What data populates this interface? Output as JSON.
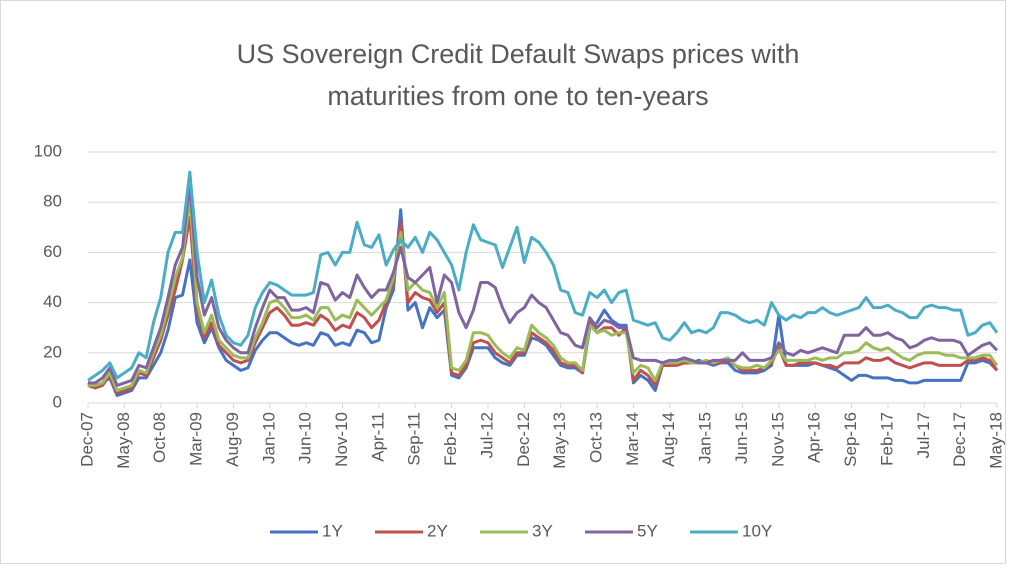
{
  "chart_data": {
    "type": "line",
    "title": "US Sovereign Credit Default Swaps prices with",
    "subtitle": "maturities from one to ten-years",
    "categories": [
      "Dec-07",
      null,
      null,
      null,
      null,
      "May-08",
      null,
      null,
      null,
      null,
      "Oct-08",
      null,
      null,
      null,
      null,
      "Mar-09",
      null,
      null,
      null,
      null,
      "Aug-09",
      null,
      null,
      null,
      null,
      "Jan-10",
      null,
      null,
      null,
      null,
      "Jun-10",
      null,
      null,
      null,
      null,
      "Nov-10",
      null,
      null,
      null,
      null,
      "Apr-11",
      null,
      null,
      null,
      null,
      "Sep-11",
      null,
      null,
      null,
      null,
      "Feb-12",
      null,
      null,
      null,
      null,
      "Jul-12",
      null,
      null,
      null,
      null,
      "Dec-12",
      null,
      null,
      null,
      null,
      "May-13",
      null,
      null,
      null,
      null,
      "Oct-13",
      null,
      null,
      null,
      null,
      "Mar-14",
      null,
      null,
      null,
      null,
      "Aug-14",
      null,
      null,
      null,
      null,
      "Jan-15",
      null,
      null,
      null,
      null,
      "Jun-15",
      null,
      null,
      null,
      null,
      "Nov-15",
      null,
      null,
      null,
      null,
      "Apr-16",
      null,
      null,
      null,
      null,
      "Sep-16",
      null,
      null,
      null,
      null,
      "Feb-17",
      null,
      null,
      null,
      null,
      "Jul-17",
      null,
      null,
      null,
      null,
      "Dec-17",
      null,
      null,
      null,
      null,
      "May-18"
    ],
    "series": [
      {
        "name": "1Y",
        "color": "#4472c4",
        "values": [
          8,
          6,
          8,
          10,
          3,
          4,
          5,
          10,
          10,
          15,
          20,
          29,
          42,
          43,
          57,
          32,
          24,
          30,
          22,
          17,
          15,
          13,
          14,
          21,
          25,
          28,
          28,
          26,
          24,
          23,
          24,
          23,
          28,
          27,
          23,
          24,
          23,
          29,
          28,
          24,
          25,
          38,
          45,
          77,
          37,
          40,
          30,
          38,
          34,
          37,
          11,
          10,
          14,
          22,
          22,
          22,
          18,
          16,
          15,
          19,
          19,
          26,
          25,
          23,
          19,
          15,
          14,
          14,
          12,
          30,
          32,
          37,
          33,
          31,
          31,
          8,
          11,
          9,
          5,
          15,
          15,
          16,
          16,
          16,
          17,
          16,
          15,
          16,
          16,
          13,
          12,
          12,
          12,
          13,
          15,
          35,
          15,
          15,
          15,
          15,
          16,
          15,
          14,
          13,
          11,
          9,
          11,
          11,
          10,
          10,
          10,
          9,
          9,
          8,
          8,
          9,
          9,
          9,
          9,
          9,
          9,
          16,
          16,
          17,
          16,
          13
        ]
      },
      {
        "name": "2Y",
        "color": "#c0504d",
        "values": [
          7,
          6,
          7,
          11,
          4,
          5,
          6,
          12,
          11,
          18,
          25,
          35,
          45,
          57,
          74,
          37,
          26,
          32,
          23,
          20,
          17,
          16,
          17,
          24,
          30,
          36,
          38,
          35,
          31,
          31,
          32,
          31,
          35,
          33,
          29,
          31,
          30,
          36,
          34,
          30,
          33,
          40,
          48,
          72,
          40,
          44,
          42,
          41,
          36,
          40,
          12,
          11,
          15,
          24,
          25,
          24,
          20,
          18,
          16,
          20,
          20,
          28,
          26,
          24,
          21,
          16,
          15,
          15,
          12,
          33,
          28,
          30,
          30,
          27,
          30,
          9,
          13,
          11,
          7,
          15,
          15,
          15,
          16,
          16,
          16,
          16,
          16,
          16,
          17,
          15,
          13,
          13,
          13,
          14,
          16,
          22,
          15,
          15,
          16,
          16,
          16,
          15,
          15,
          14,
          16,
          16,
          16,
          18,
          17,
          17,
          18,
          16,
          15,
          14,
          15,
          16,
          16,
          15,
          15,
          15,
          15,
          17,
          17,
          18,
          17,
          13
        ]
      },
      {
        "name": "3Y",
        "color": "#9bbb59",
        "values": [
          7,
          7,
          8,
          12,
          5,
          6,
          7,
          13,
          12,
          20,
          27,
          38,
          50,
          58,
          82,
          40,
          28,
          35,
          25,
          22,
          19,
          18,
          18,
          26,
          32,
          40,
          41,
          38,
          34,
          34,
          35,
          33,
          38,
          38,
          33,
          35,
          34,
          41,
          38,
          35,
          38,
          41,
          50,
          68,
          45,
          48,
          45,
          44,
          38,
          44,
          14,
          13,
          17,
          28,
          28,
          27,
          23,
          20,
          18,
          22,
          21,
          31,
          28,
          26,
          23,
          18,
          16,
          16,
          13,
          31,
          28,
          29,
          27,
          28,
          28,
          12,
          15,
          14,
          9,
          16,
          16,
          16,
          17,
          16,
          16,
          17,
          16,
          17,
          18,
          15,
          14,
          14,
          15,
          14,
          17,
          21,
          17,
          17,
          17,
          17,
          18,
          17,
          18,
          18,
          20,
          20,
          21,
          24,
          22,
          21,
          22,
          20,
          18,
          17,
          19,
          20,
          20,
          20,
          19,
          19,
          18,
          18,
          18,
          19,
          19,
          15
        ]
      },
      {
        "name": "5Y",
        "color": "#8064a2",
        "values": [
          8,
          8,
          10,
          14,
          7,
          8,
          9,
          15,
          14,
          22,
          30,
          42,
          55,
          62,
          88,
          50,
          35,
          42,
          30,
          25,
          22,
          20,
          20,
          30,
          38,
          45,
          42,
          42,
          37,
          37,
          38,
          36,
          48,
          47,
          41,
          44,
          42,
          51,
          46,
          42,
          45,
          45,
          52,
          62,
          50,
          48,
          51,
          54,
          40,
          51,
          48,
          36,
          30,
          37,
          48,
          48,
          46,
          38,
          32,
          36,
          38,
          43,
          40,
          38,
          33,
          28,
          27,
          23,
          22,
          34,
          30,
          33,
          32,
          30,
          30,
          18,
          17,
          17,
          17,
          16,
          17,
          17,
          18,
          17,
          16,
          16,
          17,
          17,
          17,
          17,
          20,
          17,
          17,
          17,
          18,
          24,
          20,
          19,
          21,
          20,
          21,
          22,
          21,
          20,
          27,
          27,
          27,
          30,
          27,
          27,
          28,
          26,
          25,
          22,
          23,
          25,
          26,
          25,
          25,
          25,
          24,
          19,
          21,
          23,
          24,
          21
        ]
      },
      {
        "name": "10Y",
        "color": "#4bacc6",
        "values": [
          9,
          11,
          13,
          16,
          10,
          12,
          14,
          20,
          18,
          32,
          42,
          60,
          68,
          68,
          92,
          60,
          40,
          49,
          35,
          27,
          24,
          23,
          27,
          38,
          44,
          48,
          47,
          45,
          43,
          43,
          43,
          44,
          59,
          60,
          55,
          60,
          60,
          72,
          63,
          62,
          67,
          55,
          61,
          65,
          62,
          66,
          60,
          68,
          65,
          60,
          55,
          45,
          60,
          71,
          65,
          64,
          63,
          54,
          62,
          70,
          56,
          66,
          64,
          60,
          55,
          45,
          44,
          36,
          35,
          44,
          42,
          45,
          40,
          44,
          45,
          33,
          32,
          31,
          32,
          26,
          25,
          28,
          32,
          28,
          29,
          28,
          30,
          36,
          36,
          35,
          33,
          32,
          33,
          31,
          40,
          35,
          33,
          35,
          34,
          36,
          36,
          38,
          36,
          35,
          36,
          37,
          38,
          42,
          38,
          38,
          39,
          37,
          36,
          34,
          34,
          38,
          39,
          38,
          38,
          37,
          37,
          27,
          28,
          31,
          32,
          28
        ]
      }
    ],
    "ylim": [
      0,
      100
    ],
    "yticks": [
      0,
      20,
      40,
      60,
      80,
      100
    ],
    "grid": true
  }
}
